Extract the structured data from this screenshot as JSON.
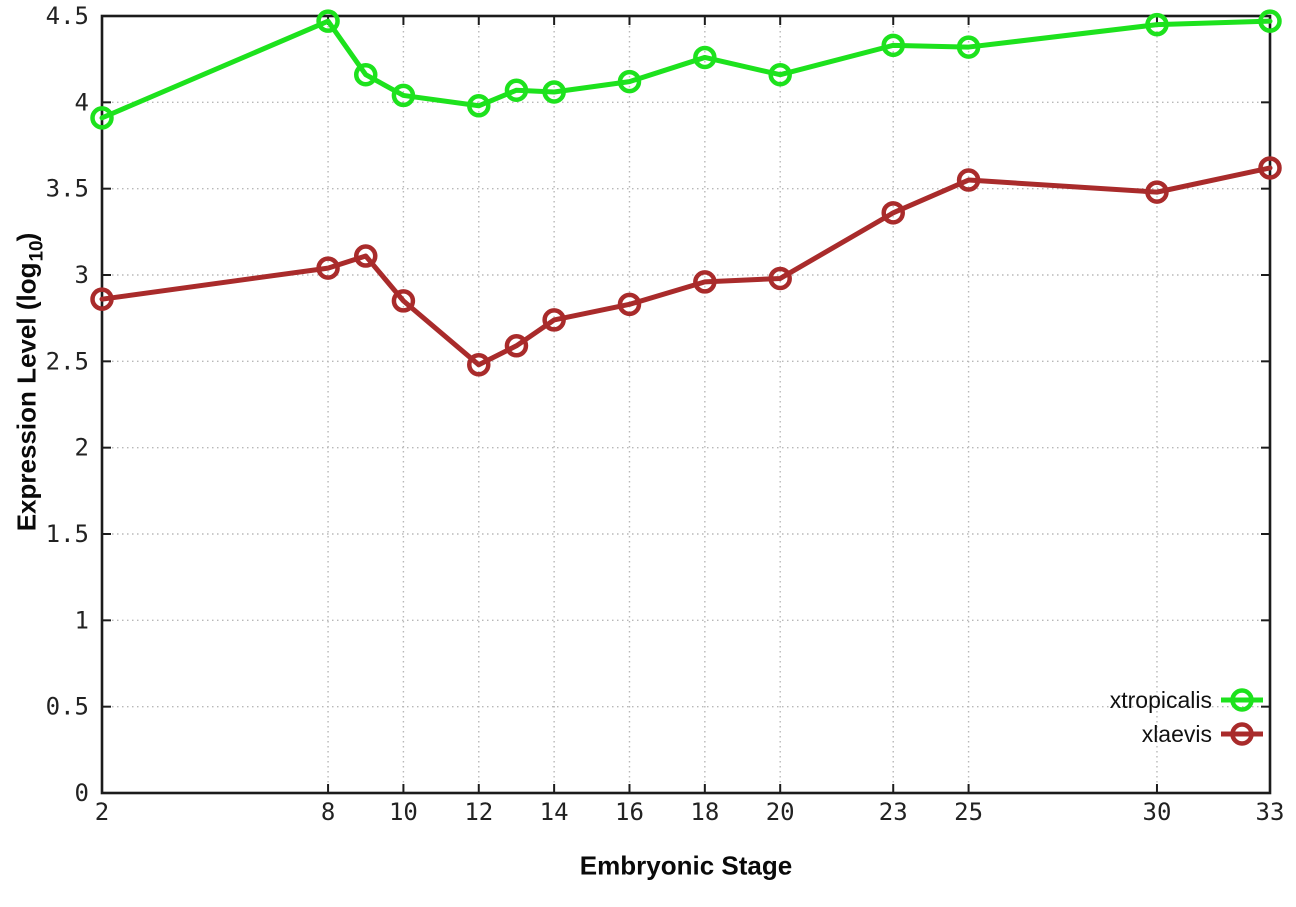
{
  "figure": {
    "background": "#ffffff",
    "xlabel": "Embryonic Stage",
    "ylabel_main": "Expression Level (log",
    "ylabel_sub": "10",
    "ylabel_close": ")"
  },
  "legend": {
    "entries": [
      "xtropicalis",
      "xlaevis"
    ],
    "position": "inside-right-lower"
  },
  "chart_data": {
    "type": "line",
    "title": "",
    "xlabel": "Embryonic Stage",
    "ylabel": "Expression Level (log10)",
    "xlim": [
      2,
      33
    ],
    "ylim": [
      0,
      4.5
    ],
    "xticks": [
      2,
      8,
      10,
      12,
      14,
      16,
      18,
      20,
      23,
      25,
      30,
      33
    ],
    "yticks": [
      0,
      0.5,
      1,
      1.5,
      2,
      2.5,
      3,
      3.5,
      4,
      4.5
    ],
    "grid": true,
    "legend_position": "inside bottom right",
    "marker": "open-circle",
    "x": [
      2,
      8,
      9,
      10,
      12,
      13,
      14,
      16,
      18,
      20,
      23,
      25,
      30,
      33
    ],
    "series": [
      {
        "name": "xtropicalis",
        "color": "#1de21d",
        "values": [
          3.91,
          4.47,
          4.16,
          4.04,
          3.98,
          4.07,
          4.06,
          4.12,
          4.26,
          4.16,
          4.33,
          4.32,
          4.45,
          4.47
        ]
      },
      {
        "name": "xlaevis",
        "color": "#a92b2b",
        "values": [
          2.86,
          3.04,
          3.11,
          2.85,
          2.48,
          2.59,
          2.74,
          2.83,
          2.96,
          2.98,
          3.36,
          3.55,
          3.48,
          3.62
        ]
      }
    ]
  }
}
